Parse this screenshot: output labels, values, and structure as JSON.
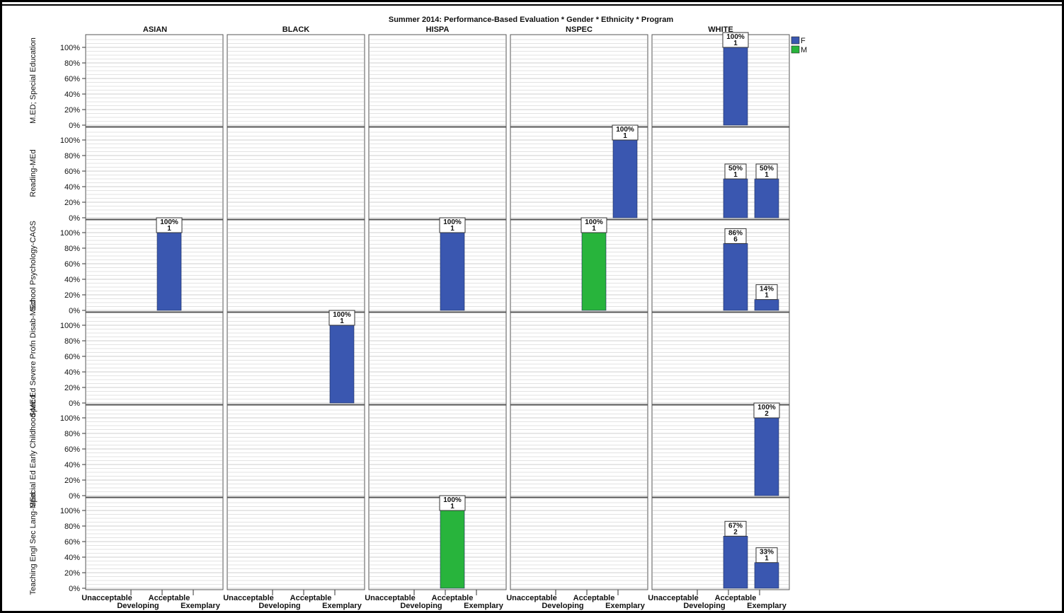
{
  "chart_data": {
    "type": "bar",
    "title": "Summer 2014: Performance-Based Evaluation * Gender * Ethnicity * Program",
    "columns": [
      "ASIAN",
      "BLACK",
      "HISPA",
      "NSPEC",
      "WHITE"
    ],
    "rows": [
      "M.ED; Special Education",
      "Reading-MEd",
      "School Psychology-CAGS",
      "Spec Ed Severe Profn Disab-MEd",
      "Special Ed Early Childhood-MEd",
      "Teaching Engl Sec Lang-MEd"
    ],
    "categories": [
      "Unacceptable",
      "Developing",
      "Acceptable",
      "Exemplary"
    ],
    "y_ticks": [
      "0%",
      "20%",
      "40%",
      "60%",
      "80%",
      "100%"
    ],
    "ylim": [
      0,
      110
    ],
    "grid": true,
    "legend": {
      "position": "top-right",
      "entries": [
        {
          "name": "F",
          "color": "#3a57b0"
        },
        {
          "name": "M",
          "color": "#28b43c"
        }
      ]
    },
    "bars": [
      {
        "row": 0,
        "col": 4,
        "category": "Acceptable",
        "series": "F",
        "value": 100,
        "label_pct": "100%",
        "label_n": "1"
      },
      {
        "row": 1,
        "col": 3,
        "category": "Exemplary",
        "series": "F",
        "value": 100,
        "label_pct": "100%",
        "label_n": "1"
      },
      {
        "row": 1,
        "col": 4,
        "category": "Acceptable",
        "series": "F",
        "value": 50,
        "label_pct": "50%",
        "label_n": "1"
      },
      {
        "row": 1,
        "col": 4,
        "category": "Exemplary",
        "series": "F",
        "value": 50,
        "label_pct": "50%",
        "label_n": "1"
      },
      {
        "row": 2,
        "col": 0,
        "category": "Acceptable",
        "series": "F",
        "value": 100,
        "label_pct": "100%",
        "label_n": "1"
      },
      {
        "row": 2,
        "col": 2,
        "category": "Acceptable",
        "series": "F",
        "value": 100,
        "label_pct": "100%",
        "label_n": "1"
      },
      {
        "row": 2,
        "col": 3,
        "category": "Acceptable",
        "series": "M",
        "value": 100,
        "label_pct": "100%",
        "label_n": "1"
      },
      {
        "row": 2,
        "col": 4,
        "category": "Acceptable",
        "series": "F",
        "value": 86,
        "label_pct": "86%",
        "label_n": "6"
      },
      {
        "row": 2,
        "col": 4,
        "category": "Exemplary",
        "series": "F",
        "value": 14,
        "label_pct": "14%",
        "label_n": "1"
      },
      {
        "row": 3,
        "col": 1,
        "category": "Exemplary",
        "series": "F",
        "value": 100,
        "label_pct": "100%",
        "label_n": "1"
      },
      {
        "row": 4,
        "col": 4,
        "category": "Exemplary",
        "series": "F",
        "value": 100,
        "label_pct": "100%",
        "label_n": "2"
      },
      {
        "row": 5,
        "col": 2,
        "category": "Acceptable",
        "series": "M",
        "value": 100,
        "label_pct": "100%",
        "label_n": "1"
      },
      {
        "row": 5,
        "col": 4,
        "category": "Acceptable",
        "series": "F",
        "value": 67,
        "label_pct": "67%",
        "label_n": "2"
      },
      {
        "row": 5,
        "col": 4,
        "category": "Exemplary",
        "series": "F",
        "value": 33,
        "label_pct": "33%",
        "label_n": "1"
      }
    ]
  }
}
